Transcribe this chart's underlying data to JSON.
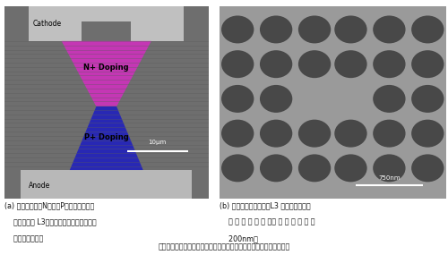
{
  "bg_color": "#ffffff",
  "sem_left_bg": "#6e6e6e",
  "cathode_color": "#b8b8b8",
  "anode_color": "#b0b0b0",
  "n_doping_color": "#cc33bb",
  "p_doping_color": "#2222bb",
  "sem_right_bg": "#9a9a9a",
  "hole_color": "#484848",
  "text_color": "#111111",
  "cathode_label": "Cathode",
  "anode_label": "Anode",
  "n_label": "N+ Doping",
  "p_label": "P+ Doping",
  "scale_left": "10μm",
  "scale_right": "750nm",
  "caption_a_line1": "(a) 全体構造図。N領域とP領域で挟み込ま",
  "caption_a_line2": "    れた部分に L3フォトニック微小共振器が",
  "caption_a_line3": "    位置している。",
  "caption_b_line1": "(b) 発光の中心となる、L3 共振器構造の電",
  "caption_b_line2": "    子 顕 微 鏡 写 真 。空 気 孔 の 直 径 は",
  "caption_b_line3": "    200nm。",
  "figure_caption": "図２　　電流注入型発光デバイスの電子顕微鏡写真：左は、全体構造"
}
